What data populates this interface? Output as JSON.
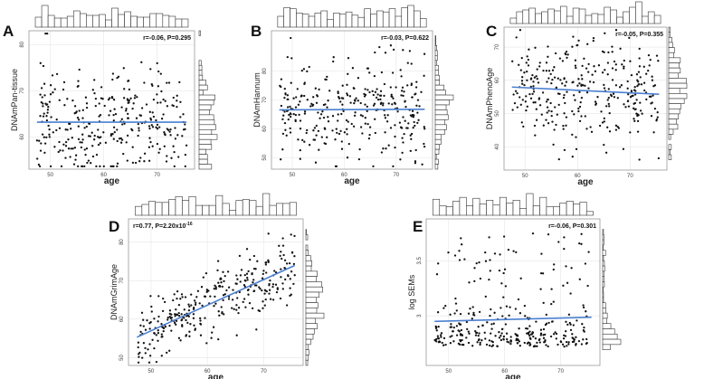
{
  "chart_data": [
    {
      "panel": "A",
      "type": "scatter",
      "xlabel": "age",
      "ylabel": "DNAmPan-tissue",
      "stat": "r=-0.06, P=0.295",
      "xlim": [
        46,
        77
      ],
      "ylim": [
        53,
        83
      ],
      "xticks": [
        50,
        60,
        70
      ],
      "yticks": [
        60,
        70,
        80
      ],
      "y_mean": 63,
      "y_sd": 6.2,
      "trend": {
        "slope": -0.05
      },
      "seed": 11
    },
    {
      "panel": "B",
      "type": "scatter",
      "xlabel": "age",
      "ylabel": "DNAmHannum",
      "stat": "r=-0.03, P=0.622",
      "xlim": [
        46,
        77
      ],
      "ylim": [
        46,
        94
      ],
      "xticks": [
        50,
        60,
        70
      ],
      "yticks": [
        50,
        60,
        70,
        80
      ],
      "y_mean": 67,
      "y_sd": 8.5,
      "trend": {
        "slope": -0.02
      },
      "seed": 23
    },
    {
      "panel": "C",
      "type": "scatter",
      "xlabel": "age",
      "ylabel": "DNAmPhenoAge",
      "stat": "r=-0.05, P=0.355",
      "xlim": [
        46,
        77
      ],
      "ylim": [
        33,
        76
      ],
      "xticks": [
        50,
        60,
        70
      ],
      "yticks": [
        40,
        50,
        60,
        70
      ],
      "y_mean": 56,
      "y_sd": 8.0,
      "trend": {
        "slope": -0.04
      },
      "seed": 37
    },
    {
      "panel": "D",
      "type": "scatter",
      "xlabel": "age",
      "ylabel": "DNAmGrimAge",
      "stat": "r=0.77, P=2.20x10",
      "stat_exp": "-16",
      "xlim": [
        46,
        77
      ],
      "ylim": [
        48,
        86
      ],
      "xticks": [
        50,
        60,
        70
      ],
      "yticks": [
        50,
        60,
        70,
        80
      ],
      "y_mean": 64.5,
      "y_sd": 4.2,
      "trend": {
        "slope": 0.66
      },
      "seed": 53
    },
    {
      "panel": "E",
      "type": "scatter",
      "xlabel": "age",
      "ylabel": "log SEMs",
      "stat": "r=-0.06, P=0.301",
      "xlim": [
        46,
        77
      ],
      "ylim": [
        2.55,
        3.88
      ],
      "xticks": [
        50,
        60,
        70
      ],
      "yticks": [
        3.0,
        3.5
      ],
      "y_mean": 2.93,
      "y_sd": 0.2,
      "trend": {
        "slope": -0.0015
      },
      "skew": true,
      "seed": 71
    }
  ]
}
